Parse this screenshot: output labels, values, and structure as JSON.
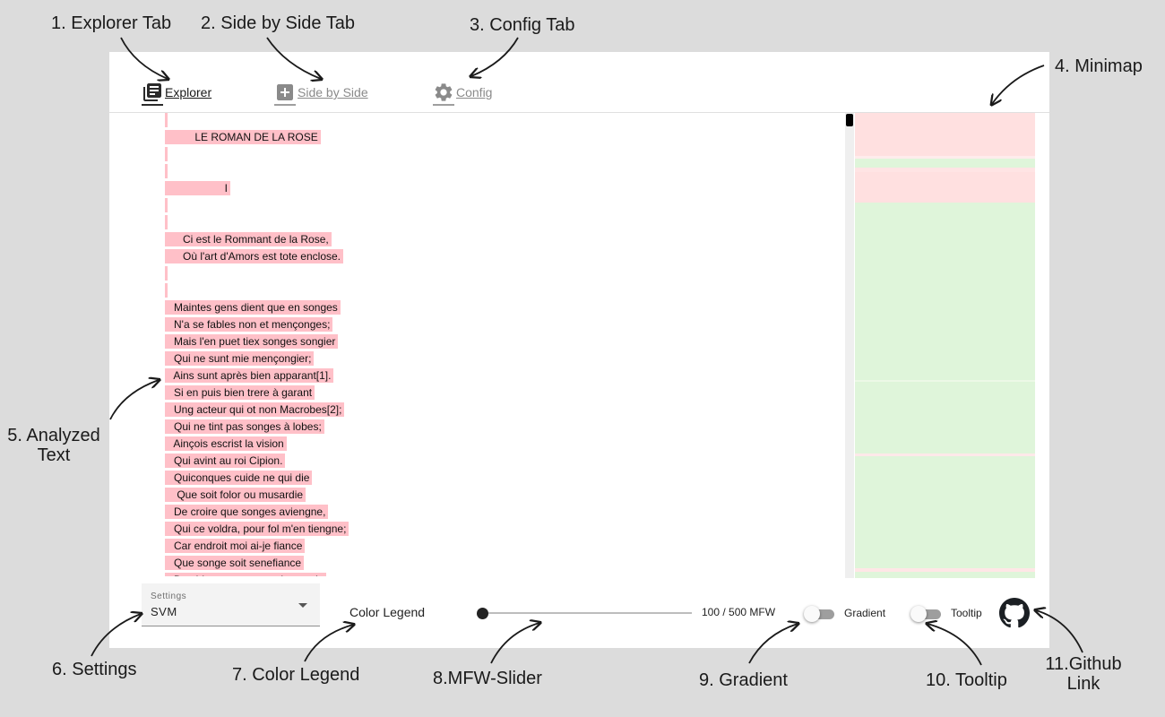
{
  "annotations": {
    "explorer_tab": "1. Explorer Tab",
    "side_by_side_tab": "2. Side by Side Tab",
    "config_tab": "3. Config Tab",
    "minimap": "4. Minimap",
    "analyzed_text_line1": "5. Analyzed",
    "analyzed_text_line2": "Text",
    "settings": "6. Settings",
    "color_legend": "7. Color Legend",
    "mfw_slider": "8.MFW-Slider",
    "gradient": "9. Gradient",
    "tooltip": "10. Tooltip",
    "github_line1": "11.Github",
    "github_line2": "Link"
  },
  "tabs": [
    {
      "label": "Explorer",
      "icon": "library-books-icon",
      "active": true
    },
    {
      "label": "Side by Side",
      "icon": "add-box-icon",
      "active": false
    },
    {
      "label": "Config",
      "icon": "gear-icon",
      "active": false
    }
  ],
  "text_lines": [
    "",
    "          LE ROMAN DE LA ROSE",
    "",
    "",
    "                    I",
    "",
    "",
    "      Ci est le Rommant de la Rose,",
    "      Où l'art d'Amors est tote enclose.",
    "",
    "",
    "   Maintes gens dient que en songes",
    "   N'a se fables non et mençonges;",
    "   Mais l'en puet tiex songes songier",
    "   Qui ne sunt mie mençongier;",
    "   Ains sunt après bien apparant[1].",
    "   Si en puis bien trere à garant",
    "   Ung acteur qui ot non Macrobes[2];",
    "   Qui ne tint pas songes à lobes;",
    "   Ainçois escrist la vision",
    "   Qui avint au roi Cipion.",
    "   Quiconques cuide ne qui die",
    "    Que soit folor ou musardie",
    "   De croire que songes aviengne,",
    "   Qui ce voldra, pour fol m'en tiengne;",
    "   Car endroit moi ai-je fiance",
    "   Que songe soit senefiance",
    "   Des biens as gens et des anuiz"
  ],
  "settings": {
    "caption": "Settings",
    "value": "SVM"
  },
  "color_legend_label": "Color Legend",
  "mfw_slider": {
    "value": 100,
    "max": 500,
    "label": "100 / 500 MFW"
  },
  "gradient": {
    "label": "Gradient",
    "on": false
  },
  "tooltip": {
    "label": "Tooltip",
    "on": false
  },
  "github_icon": "github-icon",
  "colors": {
    "text_highlight": "#ffc0c8",
    "minimap_pink": "#ffe0e0",
    "minimap_green": "#dff5da",
    "background": "#dcdcdc"
  }
}
